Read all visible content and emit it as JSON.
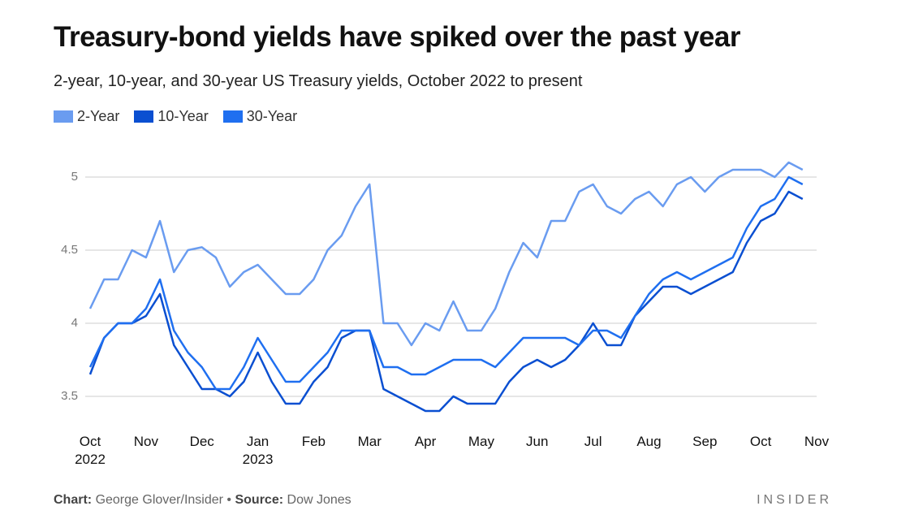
{
  "chart_data": {
    "type": "line",
    "title": "Treasury-bond yields have spiked over the past year",
    "subtitle": "2-year, 10-year, and 30-year US Treasury yields, October 2022 to present",
    "x": [
      0,
      0.25,
      0.5,
      0.75,
      1,
      1.25,
      1.5,
      1.75,
      2,
      2.25,
      2.5,
      2.75,
      3,
      3.25,
      3.5,
      3.75,
      4,
      4.25,
      4.5,
      4.75,
      5,
      5.25,
      5.5,
      5.75,
      6,
      6.25,
      6.5,
      6.75,
      7,
      7.25,
      7.5,
      7.75,
      8,
      8.25,
      8.5,
      8.75,
      9,
      9.25,
      9.5,
      9.75,
      10,
      10.25,
      10.5,
      10.75,
      11,
      11.25,
      11.5,
      11.75,
      12,
      12.25,
      12.5,
      12.75
    ],
    "series": [
      {
        "name": "2-Year",
        "color": "#6a9cf0",
        "values": [
          4.1,
          4.3,
          4.3,
          4.5,
          4.45,
          4.7,
          4.35,
          4.5,
          4.52,
          4.45,
          4.25,
          4.35,
          4.4,
          4.3,
          4.2,
          4.2,
          4.3,
          4.5,
          4.6,
          4.8,
          4.95,
          4.0,
          4.0,
          3.85,
          4.0,
          3.95,
          4.15,
          3.95,
          3.95,
          4.1,
          4.35,
          4.55,
          4.45,
          4.7,
          4.7,
          4.9,
          4.95,
          4.8,
          4.75,
          4.85,
          4.9,
          4.8,
          4.95,
          5.0,
          4.9,
          5.0,
          5.05,
          5.05,
          5.05,
          5.0,
          5.1,
          5.05
        ]
      },
      {
        "name": "10-Year",
        "color": "#0a4fd1",
        "values": [
          3.65,
          3.9,
          4.0,
          4.0,
          4.05,
          4.2,
          3.85,
          3.7,
          3.55,
          3.55,
          3.5,
          3.6,
          3.8,
          3.6,
          3.45,
          3.45,
          3.6,
          3.7,
          3.9,
          3.95,
          3.95,
          3.55,
          3.5,
          3.45,
          3.4,
          3.4,
          3.5,
          3.45,
          3.45,
          3.45,
          3.6,
          3.7,
          3.75,
          3.7,
          3.75,
          3.85,
          4.0,
          3.85,
          3.85,
          4.05,
          4.15,
          4.25,
          4.25,
          4.2,
          4.25,
          4.3,
          4.35,
          4.55,
          4.7,
          4.75,
          4.9,
          4.85
        ]
      },
      {
        "name": "30-Year",
        "color": "#1f6ff0",
        "values": [
          3.7,
          3.9,
          4.0,
          4.0,
          4.1,
          4.3,
          3.95,
          3.8,
          3.7,
          3.55,
          3.55,
          3.7,
          3.9,
          3.75,
          3.6,
          3.6,
          3.7,
          3.8,
          3.95,
          3.95,
          3.95,
          3.7,
          3.7,
          3.65,
          3.65,
          3.7,
          3.75,
          3.75,
          3.75,
          3.7,
          3.8,
          3.9,
          3.9,
          3.9,
          3.9,
          3.85,
          3.95,
          3.95,
          3.9,
          4.05,
          4.2,
          4.3,
          4.35,
          4.3,
          4.35,
          4.4,
          4.45,
          4.65,
          4.8,
          4.85,
          5.0,
          4.95
        ]
      }
    ],
    "xlim": [
      0,
      13
    ],
    "xticks": [
      {
        "value": 0,
        "label": "Oct\n2022"
      },
      {
        "value": 1,
        "label": "Nov"
      },
      {
        "value": 2,
        "label": "Dec"
      },
      {
        "value": 3,
        "label": "Jan\n2023"
      },
      {
        "value": 4,
        "label": "Feb"
      },
      {
        "value": 5,
        "label": "Mar"
      },
      {
        "value": 6,
        "label": "Apr"
      },
      {
        "value": 7,
        "label": "May"
      },
      {
        "value": 8,
        "label": "Jun"
      },
      {
        "value": 9,
        "label": "Jul"
      },
      {
        "value": 10,
        "label": "Aug"
      },
      {
        "value": 11,
        "label": "Sep"
      },
      {
        "value": 12,
        "label": "Oct"
      },
      {
        "value": 13,
        "label": "Nov"
      }
    ],
    "ylim": [
      3.3,
      5.2
    ],
    "yticks": [
      3.5,
      4,
      4.5,
      5
    ],
    "grid": true,
    "footer": {
      "chart_label": "Chart:",
      "chart_credit": "George Glover/Insider",
      "separator": "•",
      "source_label": "Source:",
      "source": "Dow Jones"
    },
    "brand": "INSIDER"
  }
}
